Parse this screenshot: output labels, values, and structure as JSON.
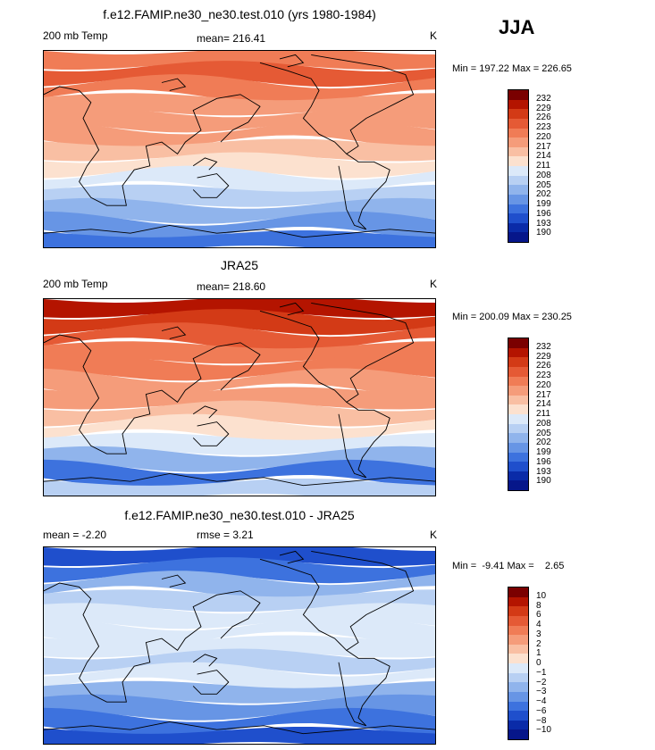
{
  "season": "JJA",
  "panels": [
    {
      "title": "f.e12.FAMIP.ne30_ne30.test.010 (yrs 1980-1984)",
      "left_label": "200 mb Temp",
      "center_label": "mean= 216.41",
      "units": "K",
      "minmax": "Min = 197.22 Max = 226.65",
      "colorbar": {
        "labels": [
          "232",
          "229",
          "226",
          "223",
          "220",
          "217",
          "214",
          "211",
          "208",
          "205",
          "202",
          "199",
          "196",
          "193",
          "190"
        ],
        "colors": [
          "#7a0000",
          "#b41400",
          "#d33a16",
          "#e55a35",
          "#f07c56",
          "#f59c7a",
          "#f9bfa3",
          "#fce1cf",
          "#dce9f9",
          "#b8d0f3",
          "#90b4ec",
          "#6795e5",
          "#3d72de",
          "#1f4fcc",
          "#0a2ba8",
          "#06168a"
        ]
      },
      "bands": [
        "#f07c56",
        "#e55a35",
        "#f07c56",
        "#f59c7a",
        "#f59c7a",
        "#f59c7a",
        "#f9bfa3",
        "#fce1cf",
        "#dce9f9",
        "#b8d0f3",
        "#90b4ec",
        "#6795e5",
        "#3d72de"
      ]
    },
    {
      "title": "JRA25",
      "left_label": "200 mb Temp",
      "center_label": "mean= 218.60",
      "units": "K",
      "minmax": "Min = 200.09 Max = 230.25",
      "colorbar": {
        "labels": [
          "232",
          "229",
          "226",
          "223",
          "220",
          "217",
          "214",
          "211",
          "208",
          "205",
          "202",
          "199",
          "196",
          "193",
          "190"
        ],
        "colors": [
          "#7a0000",
          "#b41400",
          "#d33a16",
          "#e55a35",
          "#f07c56",
          "#f59c7a",
          "#f9bfa3",
          "#fce1cf",
          "#dce9f9",
          "#b8d0f3",
          "#90b4ec",
          "#6795e5",
          "#3d72de",
          "#1f4fcc",
          "#0a2ba8",
          "#06168a"
        ]
      },
      "bands": [
        "#b41400",
        "#d33a16",
        "#e55a35",
        "#f07c56",
        "#f07c56",
        "#f59c7a",
        "#f59c7a",
        "#f9bfa3",
        "#fce1cf",
        "#dce9f9",
        "#90b4ec",
        "#3d72de",
        "#b8d0f3"
      ]
    },
    {
      "title": "f.e12.FAMIP.ne30_ne30.test.010 - JRA25",
      "left_label": "mean =   -2.20",
      "center_label": "rmse =    3.21",
      "units": "K",
      "minmax": "Min =  -9.41 Max =    2.65",
      "colorbar": {
        "labels": [
          "10",
          "8",
          "6",
          "4",
          "3",
          "2",
          "1",
          "0",
          "−1",
          "−2",
          "−3",
          "−4",
          "−6",
          "−8",
          "−10"
        ],
        "colors": [
          "#7a0000",
          "#b41400",
          "#d33a16",
          "#e55a35",
          "#f07c56",
          "#f59c7a",
          "#f9bfa3",
          "#fce1cf",
          "#dce9f9",
          "#b8d0f3",
          "#90b4ec",
          "#6795e5",
          "#3d72de",
          "#1f4fcc",
          "#0a2ba8",
          "#06168a"
        ]
      },
      "bands": [
        "#1f4fcc",
        "#3d72de",
        "#90b4ec",
        "#b8d0f3",
        "#dce9f9",
        "#dce9f9",
        "#dce9f9",
        "#b8d0f3",
        "#dce9f9",
        "#90b4ec",
        "#6795e5",
        "#3d72de",
        "#1f4fcc"
      ]
    }
  ]
}
